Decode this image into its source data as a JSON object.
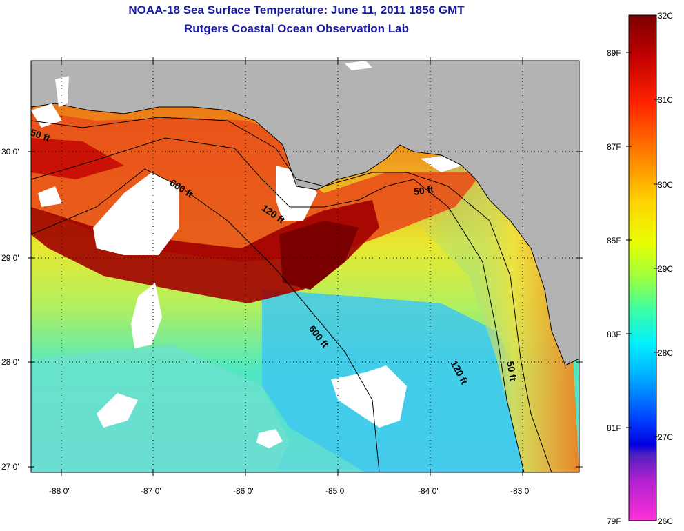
{
  "title": "NOAA-18 Sea Surface Temperature:  June 11, 2011 1856 GMT",
  "subtitle": "Rutgers Coastal Ocean Observation Lab",
  "latitude_labels": [
    "30 0'",
    "29 0'",
    "28 0'",
    "27 0'"
  ],
  "longitude_labels": [
    "-88 0'",
    "-87 0'",
    "-86 0'",
    "-85 0'",
    "-84 0'",
    "-83 0'"
  ],
  "contour_labels": {
    "c50a": "50 ft",
    "c600a": "600 ft",
    "c120a": "120 ft",
    "c50b": "50 ft",
    "c600b": "600 ft",
    "c120b": "120 ft",
    "c50c": "50 ft"
  },
  "colorbar": {
    "celsius": [
      "32C",
      "31C",
      "30C",
      "29C",
      "28C",
      "27C",
      "26C"
    ],
    "fahrenheit": [
      "89F",
      "87F",
      "85F",
      "83F",
      "81F",
      "79F"
    ]
  },
  "colors": {
    "title": "#1a1aa6",
    "land": "#b3b3b3",
    "cloud": "#ffffff",
    "warmest": "#8b0000",
    "coolest": "#ff33cc"
  }
}
